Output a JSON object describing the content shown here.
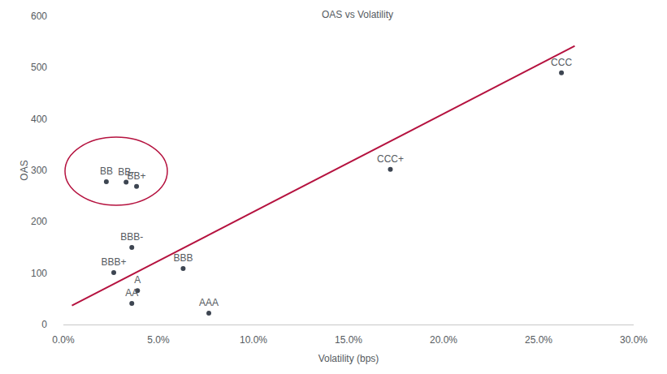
{
  "chart_data": {
    "type": "scatter",
    "title": "OAS vs Volatility",
    "x_label": "Volatility (bps)",
    "y_label": "OAS",
    "xlim": [
      0,
      30
    ],
    "xticks": [
      {
        "value": 0,
        "label": "0.0%"
      },
      {
        "value": 5,
        "label": "5.0%"
      },
      {
        "value": 10,
        "label": "10.0%"
      },
      {
        "value": 15,
        "label": "15.0%"
      },
      {
        "value": 20,
        "label": "20.0%"
      },
      {
        "value": 25,
        "label": "25.0%"
      },
      {
        "value": 30,
        "label": "30.0%"
      }
    ],
    "ylim": [
      0,
      600
    ],
    "yticks": [
      0,
      100,
      200,
      300,
      400,
      500,
      600
    ],
    "grid": false,
    "series": [
      {
        "type": "scatter",
        "color": "#3d4551",
        "marker": "circle",
        "labels": [
          "BB",
          "BB-",
          "BB+",
          "BBB-",
          "BBB+",
          "BBB",
          "A",
          "AA",
          "AAA",
          "CCC+",
          "CCC"
        ],
        "x": [
          2.26,
          3.3,
          3.85,
          3.6,
          2.65,
          6.3,
          3.9,
          3.6,
          7.65,
          17.2,
          26.2
        ],
        "values": [
          278,
          277,
          269,
          150,
          101,
          109,
          66,
          41,
          22,
          302,
          490
        ]
      },
      {
        "type": "line",
        "color": "#b5123f",
        "line_style": "solid",
        "x": [
          0.45,
          26.9
        ],
        "values": [
          37,
          542
        ]
      }
    ]
  }
}
